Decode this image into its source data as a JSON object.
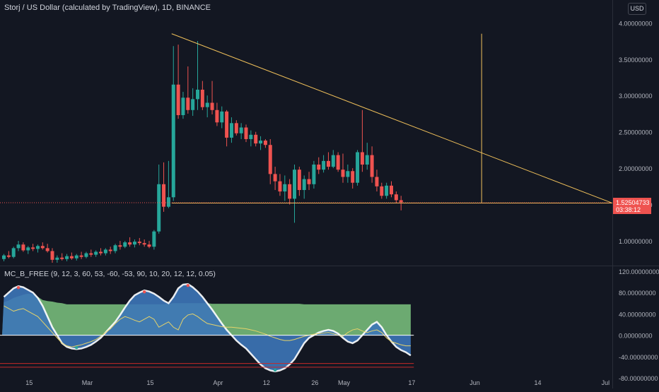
{
  "header": {
    "symbol_title": "Storj / US Dollar (calculated by TradingView), 1D, BINANCE",
    "currency_button": "USD"
  },
  "indicator": {
    "title": "MC_B_FREE (9, 12, 3, 60, 53, -60, -53, 90, 10, 20, 12, 12, 0.05)"
  },
  "price_label": {
    "value": "1.52504733",
    "countdown": "03:38:12"
  },
  "colors": {
    "background": "#131722",
    "up": "#26a69a",
    "down": "#ef5350",
    "trendline": "#f0c05a",
    "price_tag": "#ef5350",
    "wave_green": "#7cc47f",
    "wave_blue": "#3d75b8"
  },
  "chart_data": [
    {
      "type": "candlestick",
      "title": "Storj / US Dollar (calculated by TradingView), 1D, BINANCE",
      "x_ticks": [
        "15",
        "Mar",
        "15",
        "Apr",
        "12",
        "26",
        "May",
        "17",
        "Jun",
        "14",
        "Jul"
      ],
      "y_ticks": [
        "1.00000000",
        "1.50000000",
        "2.00000000",
        "2.50000000",
        "3.00000000",
        "3.50000000",
        "4.00000000"
      ],
      "ylim": [
        0.68,
        4.1
      ],
      "grid": false,
      "last_price": 1.52504733,
      "candles": [
        {
          "o": 0.75,
          "h": 0.82,
          "l": 0.72,
          "c": 0.8
        },
        {
          "o": 0.8,
          "h": 0.86,
          "l": 0.76,
          "c": 0.78
        },
        {
          "o": 0.78,
          "h": 0.92,
          "l": 0.76,
          "c": 0.9
        },
        {
          "o": 0.9,
          "h": 1.0,
          "l": 0.86,
          "c": 0.95
        },
        {
          "o": 0.95,
          "h": 0.98,
          "l": 0.85,
          "c": 0.87
        },
        {
          "o": 0.87,
          "h": 0.93,
          "l": 0.82,
          "c": 0.91
        },
        {
          "o": 0.91,
          "h": 0.96,
          "l": 0.86,
          "c": 0.89
        },
        {
          "o": 0.89,
          "h": 0.95,
          "l": 0.84,
          "c": 0.93
        },
        {
          "o": 0.93,
          "h": 0.98,
          "l": 0.88,
          "c": 0.9
        },
        {
          "o": 0.9,
          "h": 0.96,
          "l": 0.84,
          "c": 0.86
        },
        {
          "o": 0.86,
          "h": 0.9,
          "l": 0.7,
          "c": 0.74
        },
        {
          "o": 0.74,
          "h": 0.8,
          "l": 0.7,
          "c": 0.77
        },
        {
          "o": 0.77,
          "h": 0.83,
          "l": 0.73,
          "c": 0.75
        },
        {
          "o": 0.75,
          "h": 0.82,
          "l": 0.72,
          "c": 0.79
        },
        {
          "o": 0.79,
          "h": 0.84,
          "l": 0.74,
          "c": 0.76
        },
        {
          "o": 0.76,
          "h": 0.82,
          "l": 0.73,
          "c": 0.8
        },
        {
          "o": 0.8,
          "h": 0.85,
          "l": 0.75,
          "c": 0.78
        },
        {
          "o": 0.78,
          "h": 0.85,
          "l": 0.76,
          "c": 0.83
        },
        {
          "o": 0.83,
          "h": 0.88,
          "l": 0.78,
          "c": 0.81
        },
        {
          "o": 0.81,
          "h": 0.87,
          "l": 0.78,
          "c": 0.85
        },
        {
          "o": 0.85,
          "h": 0.9,
          "l": 0.8,
          "c": 0.83
        },
        {
          "o": 0.83,
          "h": 0.9,
          "l": 0.8,
          "c": 0.88
        },
        {
          "o": 0.88,
          "h": 0.92,
          "l": 0.82,
          "c": 0.86
        },
        {
          "o": 0.86,
          "h": 0.96,
          "l": 0.83,
          "c": 0.94
        },
        {
          "o": 0.94,
          "h": 1.0,
          "l": 0.88,
          "c": 0.92
        },
        {
          "o": 0.92,
          "h": 1.0,
          "l": 0.9,
          "c": 0.98
        },
        {
          "o": 0.98,
          "h": 1.05,
          "l": 0.92,
          "c": 0.95
        },
        {
          "o": 0.95,
          "h": 1.02,
          "l": 0.91,
          "c": 0.99
        },
        {
          "o": 0.99,
          "h": 1.04,
          "l": 0.94,
          "c": 0.97
        },
        {
          "o": 0.97,
          "h": 1.02,
          "l": 0.92,
          "c": 0.95
        },
        {
          "o": 0.95,
          "h": 1.0,
          "l": 0.9,
          "c": 0.92
        },
        {
          "o": 0.92,
          "h": 1.15,
          "l": 0.88,
          "c": 1.13
        },
        {
          "o": 1.13,
          "h": 2.05,
          "l": 1.1,
          "c": 1.78
        },
        {
          "o": 1.78,
          "h": 2.08,
          "l": 1.4,
          "c": 1.47
        },
        {
          "o": 1.47,
          "h": 2.1,
          "l": 1.45,
          "c": 1.6
        },
        {
          "o": 1.6,
          "h": 3.68,
          "l": 1.55,
          "c": 3.15
        },
        {
          "o": 3.15,
          "h": 3.7,
          "l": 2.68,
          "c": 2.73
        },
        {
          "o": 2.73,
          "h": 3.05,
          "l": 2.68,
          "c": 2.97
        },
        {
          "o": 2.97,
          "h": 3.4,
          "l": 2.75,
          "c": 2.8
        },
        {
          "o": 2.8,
          "h": 3.1,
          "l": 2.72,
          "c": 2.95
        },
        {
          "o": 2.95,
          "h": 3.75,
          "l": 2.8,
          "c": 3.08
        },
        {
          "o": 3.08,
          "h": 3.2,
          "l": 2.8,
          "c": 2.84
        },
        {
          "o": 2.84,
          "h": 3.0,
          "l": 2.7,
          "c": 2.9
        },
        {
          "o": 2.9,
          "h": 3.2,
          "l": 2.74,
          "c": 2.8
        },
        {
          "o": 2.8,
          "h": 2.9,
          "l": 2.58,
          "c": 2.63
        },
        {
          "o": 2.63,
          "h": 2.85,
          "l": 2.55,
          "c": 2.78
        },
        {
          "o": 2.78,
          "h": 2.8,
          "l": 2.3,
          "c": 2.42
        },
        {
          "o": 2.42,
          "h": 2.7,
          "l": 2.35,
          "c": 2.62
        },
        {
          "o": 2.62,
          "h": 2.66,
          "l": 2.45,
          "c": 2.48
        },
        {
          "o": 2.48,
          "h": 2.62,
          "l": 2.4,
          "c": 2.56
        },
        {
          "o": 2.56,
          "h": 2.6,
          "l": 2.36,
          "c": 2.4
        },
        {
          "o": 2.4,
          "h": 2.52,
          "l": 2.3,
          "c": 2.46
        },
        {
          "o": 2.46,
          "h": 2.5,
          "l": 2.3,
          "c": 2.34
        },
        {
          "o": 2.34,
          "h": 2.44,
          "l": 2.25,
          "c": 2.38
        },
        {
          "o": 2.38,
          "h": 2.4,
          "l": 2.28,
          "c": 2.32
        },
        {
          "o": 2.32,
          "h": 2.4,
          "l": 1.78,
          "c": 1.92
        },
        {
          "o": 1.92,
          "h": 2.02,
          "l": 1.7,
          "c": 1.82
        },
        {
          "o": 1.82,
          "h": 1.92,
          "l": 1.62,
          "c": 1.68
        },
        {
          "o": 1.68,
          "h": 1.9,
          "l": 1.55,
          "c": 1.78
        },
        {
          "o": 1.78,
          "h": 1.85,
          "l": 1.5,
          "c": 1.58
        },
        {
          "o": 1.58,
          "h": 2.05,
          "l": 1.25,
          "c": 1.98
        },
        {
          "o": 1.98,
          "h": 2.02,
          "l": 1.62,
          "c": 1.7
        },
        {
          "o": 1.7,
          "h": 1.9,
          "l": 1.58,
          "c": 1.85
        },
        {
          "o": 1.85,
          "h": 1.95,
          "l": 1.7,
          "c": 1.78
        },
        {
          "o": 1.78,
          "h": 2.1,
          "l": 1.72,
          "c": 2.05
        },
        {
          "o": 2.05,
          "h": 2.15,
          "l": 1.92,
          "c": 1.98
        },
        {
          "o": 1.98,
          "h": 2.18,
          "l": 1.94,
          "c": 2.1
        },
        {
          "o": 2.1,
          "h": 2.22,
          "l": 1.98,
          "c": 2.02
        },
        {
          "o": 2.02,
          "h": 2.25,
          "l": 2.0,
          "c": 2.18
        },
        {
          "o": 2.18,
          "h": 2.22,
          "l": 1.95,
          "c": 1.98
        },
        {
          "o": 1.98,
          "h": 2.2,
          "l": 1.8,
          "c": 1.88
        },
        {
          "o": 1.88,
          "h": 2.05,
          "l": 1.8,
          "c": 1.96
        },
        {
          "o": 1.96,
          "h": 2.0,
          "l": 1.72,
          "c": 1.8
        },
        {
          "o": 1.8,
          "h": 2.25,
          "l": 1.76,
          "c": 2.22
        },
        {
          "o": 2.22,
          "h": 2.8,
          "l": 1.95,
          "c": 2.05
        },
        {
          "o": 2.05,
          "h": 2.35,
          "l": 1.98,
          "c": 2.18
        },
        {
          "o": 2.18,
          "h": 2.3,
          "l": 1.8,
          "c": 1.88
        },
        {
          "o": 1.88,
          "h": 1.98,
          "l": 1.68,
          "c": 1.75
        },
        {
          "o": 1.75,
          "h": 1.8,
          "l": 1.58,
          "c": 1.62
        },
        {
          "o": 1.62,
          "h": 1.8,
          "l": 1.58,
          "c": 1.76
        },
        {
          "o": 1.76,
          "h": 1.82,
          "l": 1.6,
          "c": 1.64
        },
        {
          "o": 1.64,
          "h": 1.68,
          "l": 1.52,
          "c": 1.56
        },
        {
          "o": 1.56,
          "h": 1.62,
          "l": 1.42,
          "c": 1.53
        }
      ],
      "annotations": {
        "triangle_support": {
          "from": {
            "bar": 35,
            "price": 1.52
          },
          "to": {
            "bar": 126,
            "price": 1.52
          }
        },
        "triangle_resistance": {
          "from": {
            "bar": 35,
            "price": 3.85
          },
          "to": {
            "bar": 126,
            "price": 1.52
          }
        },
        "vertical_projection": {
          "bar": 99,
          "from_price": 1.52,
          "to_price": 3.85
        }
      }
    },
    {
      "type": "area",
      "title": "MC_B_FREE (9, 12, 3, 60, 53, -60, -53, 90, 10, 20, 12, 12, 0.05)",
      "y_ticks": [
        "120.00000000",
        "80.00000000",
        "40.00000000",
        "0.00000000",
        "-40.00000000",
        "-80.00000000"
      ],
      "ylim": [
        -92,
        128
      ],
      "reference_lines": [
        -53,
        -60
      ],
      "series": [
        {
          "role": "green_wave",
          "values": [
            62,
            65,
            70,
            73,
            76,
            78,
            77,
            72,
            66,
            64,
            63,
            61,
            60,
            58,
            58,
            58,
            58,
            58,
            58,
            58,
            58,
            58,
            58,
            58,
            58,
            58,
            58,
            58,
            58,
            58,
            58,
            58,
            58,
            58,
            59,
            60,
            60,
            60,
            60,
            60,
            60,
            60,
            60,
            59,
            59,
            59,
            59,
            59,
            59,
            59,
            59,
            59,
            59,
            59,
            59,
            59,
            59,
            59,
            59,
            59,
            59,
            59,
            58,
            58,
            58,
            58,
            58,
            58,
            58,
            58,
            58,
            58,
            58,
            58,
            58,
            58,
            58,
            58,
            58,
            58,
            58,
            58,
            58,
            58,
            58
          ]
        },
        {
          "role": "blue_wave",
          "values": [
            72,
            80,
            88,
            92,
            90,
            85,
            80,
            70,
            55,
            35,
            15,
            0,
            -15,
            -22,
            -25,
            -26,
            -25,
            -22,
            -18,
            -12,
            -5,
            5,
            15,
            25,
            38,
            52,
            65,
            75,
            80,
            84,
            82,
            78,
            72,
            65,
            60,
            72,
            88,
            95,
            96,
            90,
            82,
            72,
            60,
            48,
            35,
            22,
            10,
            0,
            -10,
            -18,
            -25,
            -35,
            -45,
            -55,
            -62,
            -66,
            -68,
            -66,
            -62,
            -55,
            -45,
            -30,
            -15,
            -5,
            0,
            5,
            8,
            10,
            8,
            3,
            -5,
            -12,
            -15,
            -10,
            0,
            10,
            20,
            25,
            15,
            0,
            -12,
            -22,
            -28,
            -32,
            -38
          ]
        },
        {
          "role": "signal_line",
          "values": [
            55,
            50,
            45,
            48,
            50,
            45,
            40,
            35,
            25,
            15,
            5,
            -5,
            -15,
            -20,
            -22,
            -20,
            -18,
            -15,
            -12,
            -8,
            -2,
            5,
            12,
            22,
            30,
            35,
            32,
            28,
            25,
            30,
            35,
            30,
            15,
            20,
            25,
            15,
            10,
            30,
            38,
            40,
            35,
            28,
            22,
            20,
            18,
            16,
            15,
            15,
            14,
            13,
            12,
            10,
            8,
            5,
            2,
            -2,
            -5,
            -8,
            -10,
            -10,
            -8,
            -5,
            -2,
            0,
            2,
            3,
            4,
            5,
            3,
            0,
            -2,
            5,
            10,
            12,
            8,
            5,
            8,
            10,
            5,
            -5,
            -12,
            -15,
            -18,
            -20,
            -20
          ]
        }
      ]
    }
  ]
}
